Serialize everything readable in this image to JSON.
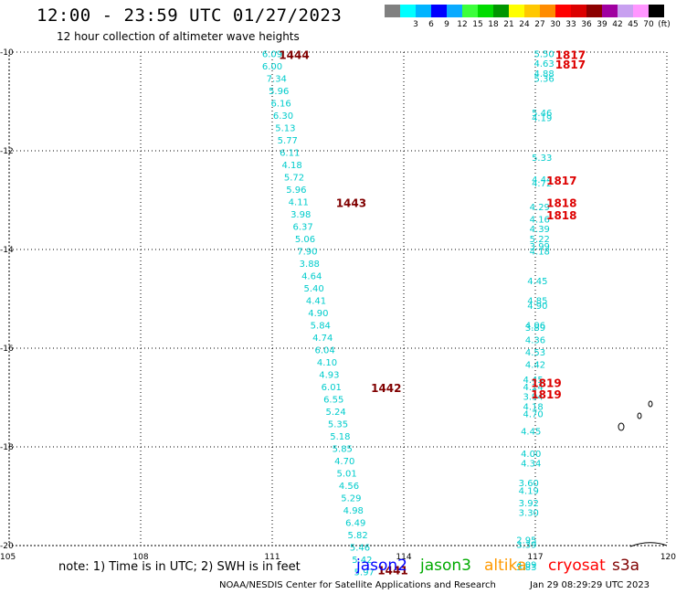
{
  "header": {
    "title": "12:00 - 23:59 UTC 01/27/2023",
    "subtitle": "12 hour collection of altimeter wave heights"
  },
  "legend": {
    "swatches": [
      {
        "color": "#808080",
        "label": ""
      },
      {
        "color": "#00ffff",
        "label": "3"
      },
      {
        "color": "#00b4ff",
        "label": "6"
      },
      {
        "color": "#0000ff",
        "label": "9"
      },
      {
        "color": "#0aaaff",
        "label": "12"
      },
      {
        "color": "#3cff3c",
        "label": "15"
      },
      {
        "color": "#00dc00",
        "label": "18"
      },
      {
        "color": "#009600",
        "label": "21"
      },
      {
        "color": "#ffff00",
        "label": "24"
      },
      {
        "color": "#ffc800",
        "label": "27"
      },
      {
        "color": "#ff8c00",
        "label": "30"
      },
      {
        "color": "#ff0000",
        "label": "33"
      },
      {
        "color": "#dc0000",
        "label": "36"
      },
      {
        "color": "#8c0000",
        "label": "39"
      },
      {
        "color": "#a000a0",
        "label": "42"
      },
      {
        "color": "#c8a0f0",
        "label": "45"
      },
      {
        "color": "#ff96ff",
        "label": "70"
      },
      {
        "color": "#000000",
        "label": "(ft)"
      }
    ]
  },
  "map": {
    "lon_range": [
      105,
      120
    ],
    "lat_range": [
      -20,
      -10
    ],
    "lon_ticks": [
      "105",
      "108",
      "111",
      "114",
      "117",
      "120"
    ],
    "lat_ticks": [
      "-10",
      "-12",
      "-14",
      "-16",
      "-18",
      "-20"
    ],
    "grid": "dotted",
    "colors": {
      "wave_label": "#00cccc",
      "time_label_a": "#800000",
      "time_label_b": "#dd0000"
    }
  },
  "track_a": [
    {
      "lon": 111.0,
      "lat": -10.1,
      "v": "6.09"
    },
    {
      "lon": 111.0,
      "lat": -10.35,
      "v": "6.00"
    },
    {
      "lon": 111.1,
      "lat": -10.6,
      "v": "7.34"
    },
    {
      "lon": 111.15,
      "lat": -10.85,
      "v": "5.96"
    },
    {
      "lon": 111.2,
      "lat": -11.1,
      "v": "6.16"
    },
    {
      "lon": 111.25,
      "lat": -11.35,
      "v": "6.30"
    },
    {
      "lon": 111.3,
      "lat": -11.6,
      "v": "5.13"
    },
    {
      "lon": 111.35,
      "lat": -11.85,
      "v": "5.77"
    },
    {
      "lon": 111.4,
      "lat": -12.1,
      "v": "6.11"
    },
    {
      "lon": 111.45,
      "lat": -12.35,
      "v": "4.18"
    },
    {
      "lon": 111.5,
      "lat": -12.6,
      "v": "5.72"
    },
    {
      "lon": 111.55,
      "lat": -12.85,
      "v": "5.96"
    },
    {
      "lon": 111.6,
      "lat": -13.1,
      "v": "4.11"
    },
    {
      "lon": 111.65,
      "lat": -13.35,
      "v": "3.98"
    },
    {
      "lon": 111.7,
      "lat": -13.6,
      "v": "6.37"
    },
    {
      "lon": 111.75,
      "lat": -13.85,
      "v": "5.06"
    },
    {
      "lon": 111.8,
      "lat": -14.1,
      "v": "7.90"
    },
    {
      "lon": 111.85,
      "lat": -14.35,
      "v": "3.88"
    },
    {
      "lon": 111.9,
      "lat": -14.6,
      "v": "4.64"
    },
    {
      "lon": 111.95,
      "lat": -14.85,
      "v": "5.40"
    },
    {
      "lon": 112.0,
      "lat": -15.1,
      "v": "4.41"
    },
    {
      "lon": 112.05,
      "lat": -15.35,
      "v": "4.90"
    },
    {
      "lon": 112.1,
      "lat": -15.6,
      "v": "5.84"
    },
    {
      "lon": 112.15,
      "lat": -15.85,
      "v": "4.74"
    },
    {
      "lon": 112.2,
      "lat": -16.1,
      "v": "6.04"
    },
    {
      "lon": 112.25,
      "lat": -16.35,
      "v": "4.10"
    },
    {
      "lon": 112.3,
      "lat": -16.6,
      "v": "4.93"
    },
    {
      "lon": 112.35,
      "lat": -16.85,
      "v": "6.01"
    },
    {
      "lon": 112.4,
      "lat": -17.1,
      "v": "6.55"
    },
    {
      "lon": 112.45,
      "lat": -17.35,
      "v": "5.24"
    },
    {
      "lon": 112.5,
      "lat": -17.6,
      "v": "5.35"
    },
    {
      "lon": 112.55,
      "lat": -17.85,
      "v": "5.18"
    },
    {
      "lon": 112.6,
      "lat": -18.1,
      "v": "5.85"
    },
    {
      "lon": 112.65,
      "lat": -18.35,
      "v": "4.70"
    },
    {
      "lon": 112.7,
      "lat": -18.6,
      "v": "5.01"
    },
    {
      "lon": 112.75,
      "lat": -18.85,
      "v": "4.56"
    },
    {
      "lon": 112.8,
      "lat": -19.1,
      "v": "5.29"
    },
    {
      "lon": 112.85,
      "lat": -19.35,
      "v": "4.98"
    },
    {
      "lon": 112.9,
      "lat": -19.6,
      "v": "6.49"
    },
    {
      "lon": 112.95,
      "lat": -19.85,
      "v": "5.82"
    },
    {
      "lon": 113.0,
      "lat": -20.1,
      "v": "5.46"
    },
    {
      "lon": 113.05,
      "lat": -20.35,
      "v": "5.42"
    },
    {
      "lon": 113.1,
      "lat": -20.6,
      "v": "5.97"
    }
  ],
  "track_b": [
    {
      "lon": 117.2,
      "lat": -10.1,
      "v": "5.50"
    },
    {
      "lon": 117.2,
      "lat": -10.3,
      "v": "4.63"
    },
    {
      "lon": 117.2,
      "lat": -10.5,
      "v": "4.88"
    },
    {
      "lon": 117.2,
      "lat": -10.6,
      "v": "5.36"
    },
    {
      "lon": 117.15,
      "lat": -11.3,
      "v": "5.46"
    },
    {
      "lon": 117.15,
      "lat": -11.4,
      "v": "4.19"
    },
    {
      "lon": 117.15,
      "lat": -12.2,
      "v": "5.33"
    },
    {
      "lon": 117.15,
      "lat": -12.65,
      "v": "4.44"
    },
    {
      "lon": 117.15,
      "lat": -12.72,
      "v": "4.72"
    },
    {
      "lon": 117.1,
      "lat": -13.2,
      "v": "4.29"
    },
    {
      "lon": 117.1,
      "lat": -13.45,
      "v": "4.16"
    },
    {
      "lon": 117.1,
      "lat": -13.65,
      "v": "4.39"
    },
    {
      "lon": 117.1,
      "lat": -13.85,
      "v": "5.22"
    },
    {
      "lon": 117.1,
      "lat": -14.0,
      "v": "3.99"
    },
    {
      "lon": 117.1,
      "lat": -14.1,
      "v": "4.18"
    },
    {
      "lon": 117.05,
      "lat": -14.7,
      "v": "4.45"
    },
    {
      "lon": 117.05,
      "lat": -15.1,
      "v": "4.85"
    },
    {
      "lon": 117.05,
      "lat": -15.2,
      "v": "4.90"
    },
    {
      "lon": 117.0,
      "lat": -15.6,
      "v": "4.06"
    },
    {
      "lon": 117.0,
      "lat": -15.65,
      "v": "3.89"
    },
    {
      "lon": 117.0,
      "lat": -15.9,
      "v": "4.36"
    },
    {
      "lon": 117.0,
      "lat": -16.15,
      "v": "4.53"
    },
    {
      "lon": 117.0,
      "lat": -16.4,
      "v": "4.42"
    },
    {
      "lon": 116.95,
      "lat": -16.7,
      "v": "4.45"
    },
    {
      "lon": 116.95,
      "lat": -16.85,
      "v": "4.24"
    },
    {
      "lon": 116.95,
      "lat": -17.05,
      "v": "3.94"
    },
    {
      "lon": 116.95,
      "lat": -17.25,
      "v": "4.18"
    },
    {
      "lon": 116.95,
      "lat": -17.4,
      "v": "4.70"
    },
    {
      "lon": 116.9,
      "lat": -17.75,
      "v": "4.45"
    },
    {
      "lon": 116.9,
      "lat": -18.2,
      "v": "4.00"
    },
    {
      "lon": 116.9,
      "lat": -18.4,
      "v": "4.34"
    },
    {
      "lon": 116.85,
      "lat": -18.8,
      "v": "3.60"
    },
    {
      "lon": 116.85,
      "lat": -18.95,
      "v": "4.19"
    },
    {
      "lon": 116.85,
      "lat": -19.2,
      "v": "3.92"
    },
    {
      "lon": 116.85,
      "lat": -19.4,
      "v": "3.30"
    },
    {
      "lon": 116.8,
      "lat": -19.95,
      "v": "2.95"
    },
    {
      "lon": 116.8,
      "lat": -20.05,
      "v": "3.39"
    },
    {
      "lon": 116.8,
      "lat": -20.45,
      "v": "4.09"
    },
    {
      "lon": 116.8,
      "lat": -20.5,
      "v": "3.83"
    }
  ],
  "time_labels": [
    {
      "lon": 111.5,
      "lat": -10.1,
      "t": "1444",
      "c": "dark"
    },
    {
      "lon": 112.8,
      "lat": -13.1,
      "t": "1443",
      "c": "dark"
    },
    {
      "lon": 113.6,
      "lat": -16.85,
      "t": "1442",
      "c": "dark"
    },
    {
      "lon": 113.75,
      "lat": -20.55,
      "t": "1441",
      "c": "dark"
    },
    {
      "lon": 117.8,
      "lat": -10.1,
      "t": "1817",
      "c": "red"
    },
    {
      "lon": 117.8,
      "lat": -10.3,
      "t": "1817",
      "c": "red"
    },
    {
      "lon": 117.6,
      "lat": -12.65,
      "t": "1817",
      "c": "red"
    },
    {
      "lon": 117.6,
      "lat": -13.1,
      "t": "1818",
      "c": "red"
    },
    {
      "lon": 117.6,
      "lat": -13.35,
      "t": "1818",
      "c": "red"
    },
    {
      "lon": 117.25,
      "lat": -16.75,
      "t": "1819",
      "c": "red"
    },
    {
      "lon": 117.25,
      "lat": -16.98,
      "t": "1819",
      "c": "red"
    }
  ],
  "footer": {
    "note": "note: 1) Time is in UTC; 2) SWH is in feet",
    "satellites": [
      {
        "name": "jason2",
        "color": "#0000ff"
      },
      {
        "name": "jason3",
        "color": "#00aa00"
      },
      {
        "name": "altika",
        "color": "#ff9900"
      },
      {
        "name": "cryosat",
        "color": "#ff0000"
      },
      {
        "name": "s3a",
        "color": "#800000"
      }
    ],
    "credit": "NOAA/NESDIS Center for Satellite Applications and Research",
    "timestamp": "Jan 29 08:29:29 UTC 2023"
  }
}
